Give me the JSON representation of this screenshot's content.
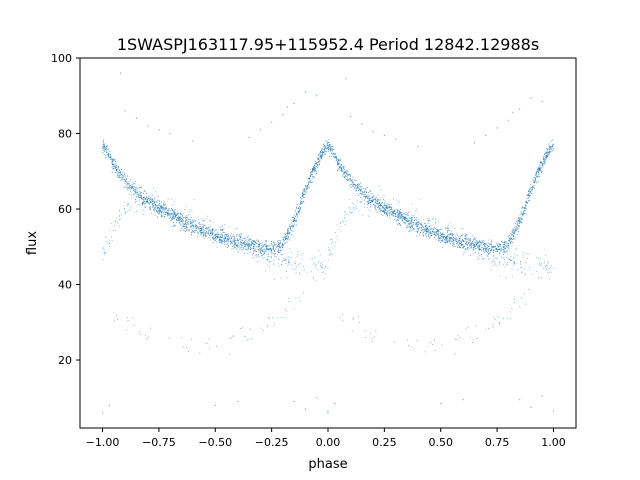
{
  "chart_data": {
    "type": "scatter",
    "title": "1SWASPJ163117.95+115952.4 Period 12842.12988s",
    "xlabel": "phase",
    "ylabel": "flux",
    "xlim": [
      -1.1,
      1.1
    ],
    "ylim": [
      2,
      100
    ],
    "xticks": [
      -1.0,
      -0.75,
      -0.5,
      -0.25,
      0.0,
      0.25,
      0.5,
      0.75,
      1.0
    ],
    "xtick_labels": [
      "−1.00",
      "−0.75",
      "−0.50",
      "−0.25",
      "0.00",
      "0.25",
      "0.50",
      "0.75",
      "1.00"
    ],
    "yticks": [
      20,
      40,
      60,
      80,
      100
    ],
    "ytick_labels": [
      "20",
      "40",
      "60",
      "80",
      "100"
    ],
    "grid": false,
    "legend": "none",
    "marker_color": "#1f77b4",
    "series": [
      {
        "main_curve": [
          [
            0.0,
            77
          ],
          [
            0.03,
            74
          ],
          [
            0.06,
            71
          ],
          [
            0.1,
            67.5
          ],
          [
            0.15,
            64.5
          ],
          [
            0.2,
            62
          ],
          [
            0.25,
            60
          ],
          [
            0.3,
            58.5
          ],
          [
            0.35,
            57
          ],
          [
            0.4,
            55.5
          ],
          [
            0.45,
            54
          ],
          [
            0.5,
            53
          ],
          [
            0.55,
            52
          ],
          [
            0.6,
            51.2
          ],
          [
            0.65,
            50.5
          ],
          [
            0.7,
            49.8
          ],
          [
            0.75,
            49.5
          ],
          [
            0.78,
            49.8
          ],
          [
            0.8,
            51
          ],
          [
            0.83,
            54
          ],
          [
            0.86,
            58
          ],
          [
            0.89,
            63
          ],
          [
            0.92,
            68
          ],
          [
            0.95,
            72
          ],
          [
            0.98,
            75.5
          ],
          [
            1.0,
            77
          ]
        ],
        "secondary_curve": [
          [
            -1.0,
            48
          ],
          [
            -0.95,
            55
          ],
          [
            -0.9,
            60
          ],
          [
            -0.85,
            62
          ],
          [
            -0.8,
            63
          ],
          [
            -0.75,
            62
          ],
          [
            -0.7,
            60
          ],
          [
            -0.65,
            58.5
          ],
          [
            -0.6,
            57
          ],
          [
            -0.55,
            55.5
          ],
          [
            -0.5,
            54
          ],
          [
            -0.45,
            53
          ],
          [
            -0.4,
            51.5
          ],
          [
            -0.35,
            50
          ],
          [
            -0.3,
            48.5
          ],
          [
            -0.25,
            47
          ],
          [
            -0.2,
            46
          ],
          [
            -0.15,
            45.5
          ],
          [
            -0.1,
            45
          ],
          [
            -0.05,
            45
          ],
          [
            0.0,
            45
          ]
        ],
        "faint_arc": [
          [
            -0.95,
            32
          ],
          [
            -0.85,
            28
          ],
          [
            -0.75,
            26.5
          ],
          [
            -0.65,
            25
          ],
          [
            -0.55,
            24.5
          ],
          [
            -0.45,
            25
          ],
          [
            -0.35,
            26
          ],
          [
            -0.3,
            28
          ],
          [
            -0.25,
            30
          ],
          [
            -0.2,
            33
          ],
          [
            -0.15,
            35
          ],
          [
            -0.1,
            37
          ]
        ],
        "upper_outliers": [
          [
            -0.05,
            90
          ],
          [
            -0.15,
            88
          ],
          [
            -0.2,
            85
          ],
          [
            -0.25,
            83
          ],
          [
            -0.3,
            81
          ],
          [
            -0.35,
            79
          ],
          [
            -0.85,
            84
          ],
          [
            -0.8,
            82
          ],
          [
            -0.75,
            81
          ],
          [
            -0.9,
            86
          ],
          [
            -0.92,
            96
          ],
          [
            -0.1,
            91
          ],
          [
            -0.18,
            87
          ],
          [
            -0.6,
            78
          ],
          [
            -0.7,
            80
          ]
        ],
        "lower_outliers": [
          [
            -1.0,
            6
          ],
          [
            -0.97,
            8
          ],
          [
            -0.5,
            8
          ],
          [
            -0.4,
            9
          ],
          [
            -0.15,
            9
          ],
          [
            -0.1,
            7
          ],
          [
            0.0,
            6
          ],
          [
            -0.05,
            10
          ]
        ]
      }
    ]
  }
}
